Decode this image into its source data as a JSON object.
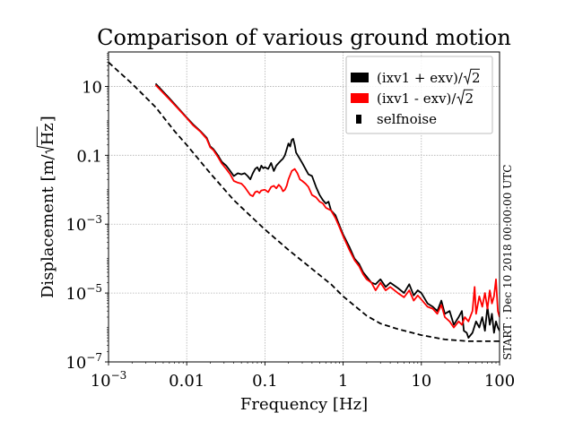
{
  "chart_data": {
    "type": "line",
    "title": "Comparison of various ground motion",
    "xlabel": "Frequency [Hz]",
    "ylabel": "Displacement [m/√Hz]",
    "ylabel_parts": {
      "prefix": "Displacement [m/",
      "root": "Hz",
      "suffix": "]"
    },
    "xscale": "log",
    "yscale": "log",
    "xlim": [
      0.001,
      100
    ],
    "ylim": [
      1e-07,
      100
    ],
    "grid": true,
    "legend_position": "top-right",
    "x_ticks": [
      {
        "value": 0.001,
        "base": "10",
        "exp": "−3"
      },
      {
        "value": 0.01,
        "label": "0.01"
      },
      {
        "value": 0.1,
        "label": "0.1"
      },
      {
        "value": 1,
        "label": "1"
      },
      {
        "value": 10,
        "label": "10"
      },
      {
        "value": 100,
        "label": "100"
      }
    ],
    "y_ticks": [
      {
        "value": 1e-07,
        "base": "10",
        "exp": "−7"
      },
      {
        "value": 1e-05,
        "base": "10",
        "exp": "−5"
      },
      {
        "value": 0.001,
        "base": "10",
        "exp": "−3"
      },
      {
        "value": 0.1,
        "label": "0.1"
      },
      {
        "value": 10,
        "label": "10"
      }
    ],
    "annotation": "START : Dec 10 2018 00:00:00 UTC",
    "series": [
      {
        "name": "(ixv1 + exv)/√2",
        "legend_parts": {
          "prefix": "(ixv1 + exv)/",
          "root": "2"
        },
        "color": "#000000",
        "style": "solid",
        "x": [
          0.004,
          0.006,
          0.008,
          0.01,
          0.012,
          0.015,
          0.018,
          0.02,
          0.022,
          0.025,
          0.028,
          0.032,
          0.036,
          0.04,
          0.045,
          0.05,
          0.055,
          0.06,
          0.065,
          0.07,
          0.075,
          0.08,
          0.085,
          0.09,
          0.095,
          0.1,
          0.11,
          0.12,
          0.13,
          0.14,
          0.15,
          0.16,
          0.17,
          0.18,
          0.19,
          0.2,
          0.21,
          0.22,
          0.23,
          0.24,
          0.25,
          0.27,
          0.3,
          0.33,
          0.36,
          0.4,
          0.45,
          0.5,
          0.55,
          0.6,
          0.65,
          0.7,
          0.8,
          0.9,
          1.0,
          1.2,
          1.4,
          1.6,
          1.8,
          2.0,
          2.3,
          2.6,
          3.0,
          3.5,
          4.0,
          5.0,
          6.0,
          7.0,
          8.0,
          9.0,
          10,
          12,
          14,
          16,
          18,
          20,
          23,
          26,
          30,
          33,
          35,
          38,
          40,
          45,
          50,
          55,
          60,
          65,
          70,
          75,
          80,
          85,
          90,
          95,
          100
        ],
        "y": [
          12,
          4.5,
          2.2,
          1.25,
          0.8,
          0.5,
          0.32,
          0.18,
          0.15,
          0.1,
          0.065,
          0.05,
          0.035,
          0.025,
          0.03,
          0.028,
          0.03,
          0.025,
          0.02,
          0.03,
          0.04,
          0.045,
          0.035,
          0.05,
          0.042,
          0.045,
          0.04,
          0.06,
          0.035,
          0.05,
          0.06,
          0.07,
          0.08,
          0.1,
          0.15,
          0.22,
          0.18,
          0.28,
          0.3,
          0.2,
          0.12,
          0.09,
          0.06,
          0.04,
          0.028,
          0.025,
          0.012,
          0.007,
          0.005,
          0.004,
          0.0045,
          0.0025,
          0.0018,
          0.0009,
          0.0005,
          0.00022,
          0.0001,
          7e-05,
          4e-05,
          3e-05,
          2e-05,
          1.8e-05,
          2.5e-05,
          1.5e-05,
          2e-05,
          1.4e-05,
          1e-05,
          1.8e-05,
          8.5e-06,
          1.2e-05,
          1e-05,
          5e-06,
          4e-06,
          3e-06,
          6e-06,
          2.5e-06,
          3e-06,
          1.2e-06,
          2e-06,
          3e-06,
          8e-07,
          7e-07,
          5e-07,
          7e-07,
          1.5e-06,
          1e-06,
          2e-06,
          8e-07,
          4e-06,
          1.2e-06,
          2.5e-06,
          7e-07,
          1.5e-06,
          1e-06,
          8e-07
        ]
      },
      {
        "name": "(ixv1 - exv)/√2",
        "legend_parts": {
          "prefix": "(ixv1 - exv)/",
          "root": "2"
        },
        "color": "#ff0000",
        "style": "solid",
        "x": [
          0.004,
          0.006,
          0.008,
          0.01,
          0.012,
          0.015,
          0.018,
          0.02,
          0.022,
          0.025,
          0.028,
          0.032,
          0.036,
          0.04,
          0.045,
          0.05,
          0.055,
          0.06,
          0.065,
          0.07,
          0.075,
          0.08,
          0.085,
          0.09,
          0.1,
          0.11,
          0.12,
          0.13,
          0.14,
          0.15,
          0.16,
          0.17,
          0.18,
          0.19,
          0.2,
          0.22,
          0.24,
          0.26,
          0.28,
          0.3,
          0.33,
          0.36,
          0.4,
          0.45,
          0.5,
          0.55,
          0.6,
          0.7,
          0.8,
          0.9,
          1.0,
          1.2,
          1.4,
          1.6,
          1.8,
          2.0,
          2.3,
          2.6,
          3.0,
          3.5,
          4.0,
          5.0,
          6.0,
          7.0,
          8.0,
          9.0,
          10,
          12,
          14,
          16,
          18,
          20,
          23,
          26,
          30,
          33,
          36,
          40,
          45,
          48,
          50,
          55,
          60,
          65,
          70,
          75,
          80,
          85,
          90,
          95,
          100
        ],
        "y": [
          11,
          4.2,
          2.1,
          1.2,
          0.75,
          0.48,
          0.3,
          0.17,
          0.14,
          0.09,
          0.058,
          0.04,
          0.028,
          0.018,
          0.016,
          0.015,
          0.012,
          0.009,
          0.007,
          0.0065,
          0.0085,
          0.009,
          0.008,
          0.0095,
          0.01,
          0.0085,
          0.012,
          0.013,
          0.011,
          0.014,
          0.012,
          0.009,
          0.01,
          0.013,
          0.02,
          0.035,
          0.04,
          0.03,
          0.02,
          0.018,
          0.015,
          0.012,
          0.007,
          0.006,
          0.0045,
          0.004,
          0.003,
          0.0025,
          0.0015,
          0.0008,
          0.00045,
          0.00018,
          9e-05,
          6e-05,
          3.5e-05,
          2.5e-05,
          2e-05,
          1.2e-05,
          2e-05,
          1.2e-05,
          1.5e-05,
          1e-05,
          7.5e-06,
          1.2e-05,
          6e-06,
          8.5e-06,
          6.5e-06,
          4e-06,
          3.5e-06,
          2.5e-06,
          4.5e-06,
          2e-06,
          1.5e-06,
          1e-06,
          1.5e-06,
          1.2e-06,
          2e-06,
          1.5e-06,
          3e-06,
          1.5e-05,
          2.5e-06,
          8e-06,
          4e-06,
          1e-05,
          3.5e-06,
          1.2e-05,
          5e-06,
          8e-06,
          2.5e-05,
          3e-06,
          2e-06
        ]
      },
      {
        "name": "selfnoise",
        "color": "#000000",
        "style": "dashed",
        "x": [
          0.001,
          0.002,
          0.004,
          0.007,
          0.01,
          0.02,
          0.04,
          0.07,
          0.1,
          0.2,
          0.4,
          0.7,
          1.0,
          2.0,
          3.0,
          5.0,
          10,
          20,
          40,
          70,
          100
        ],
        "y": [
          50,
          12,
          2.5,
          0.5,
          0.2,
          0.03,
          0.005,
          0.0015,
          0.0007,
          0.00018,
          5e-05,
          1.8e-05,
          8e-06,
          2.2e-06,
          1.3e-06,
          9e-07,
          6e-07,
          4.5e-07,
          4e-07,
          4e-07,
          4e-07
        ]
      }
    ]
  }
}
